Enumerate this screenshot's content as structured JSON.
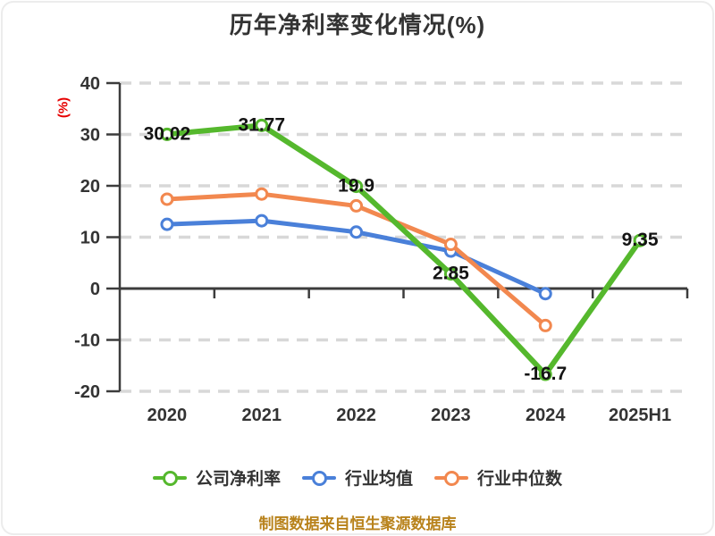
{
  "header": {
    "title": "历年净利率变化情况(%)"
  },
  "y_axis_unit": "(%)",
  "footer": {
    "caption": "制图数据来自恒生聚源数据库"
  },
  "chart_data": {
    "type": "line",
    "title": "历年净利率变化情况(%)",
    "xlabel": "",
    "ylabel": "(%)",
    "categories": [
      "2020",
      "2021",
      "2022",
      "2023",
      "2024",
      "2025H1"
    ],
    "series": [
      {
        "name": "公司净利率",
        "color": "#55b82d",
        "values": [
          30.02,
          31.77,
          19.9,
          2.85,
          -16.7,
          9.35
        ],
        "labels": [
          "30.02",
          "31.77",
          "19.9",
          "2.85",
          "-16.7",
          "9.35"
        ]
      },
      {
        "name": "行业均值",
        "color": "#4a80d9",
        "values": [
          12.5,
          13.2,
          11.0,
          7.3,
          -1.0,
          null
        ]
      },
      {
        "name": "行业中位数",
        "color": "#f2884f",
        "values": [
          17.4,
          18.4,
          16.1,
          8.6,
          -7.2,
          null
        ]
      }
    ],
    "ylim": [
      -20,
      40
    ],
    "yticks": [
      40,
      30,
      20,
      10,
      0,
      -10,
      -20
    ],
    "grid": "horizontal-dashed",
    "legend_position": "bottom",
    "colors": {
      "axis": "#3c3c3c",
      "tick_label": "#333333",
      "grid": "#d8d8d8",
      "data_label": "#141414",
      "title": "#333333",
      "ylabel": "#e60000",
      "caption": "#b8821b"
    }
  }
}
